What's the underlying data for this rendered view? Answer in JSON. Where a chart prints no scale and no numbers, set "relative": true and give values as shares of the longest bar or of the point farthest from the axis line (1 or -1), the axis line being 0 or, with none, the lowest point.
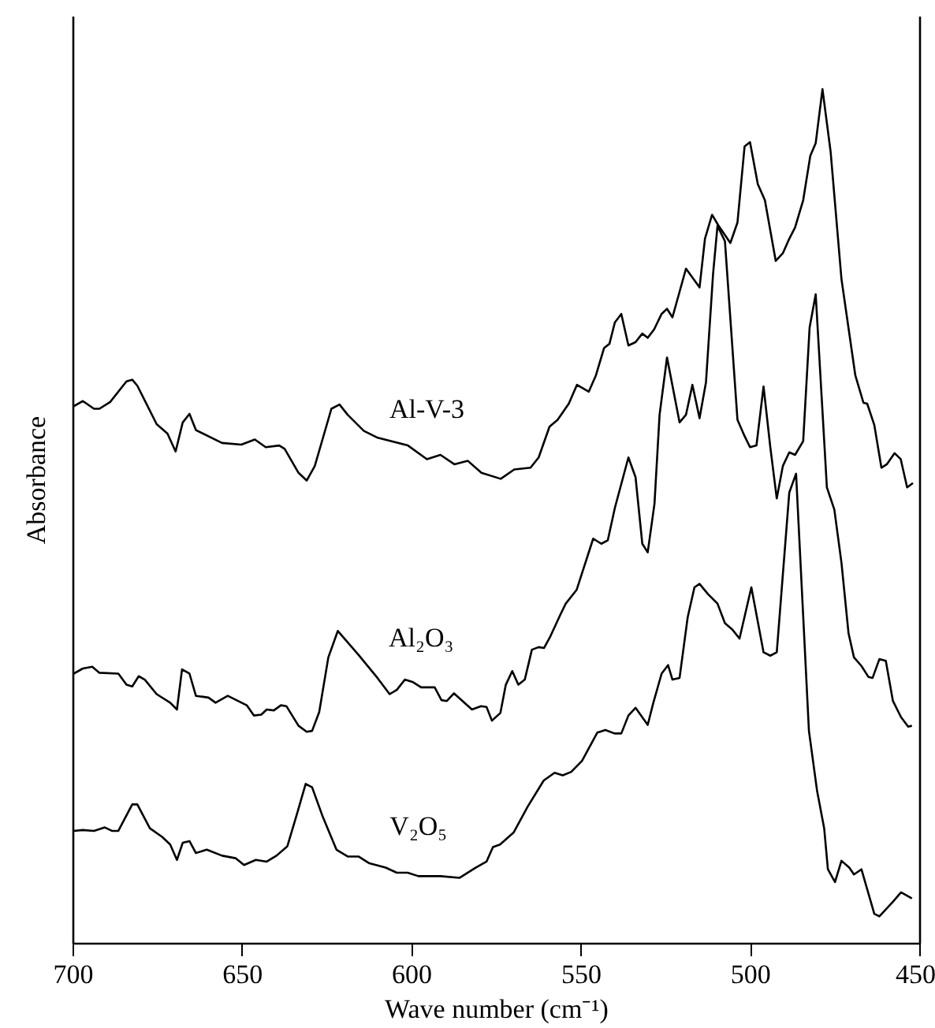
{
  "chart_data": {
    "type": "line",
    "xlabel": "Wave number (cm⁻¹)",
    "ylabel": "Absorbance",
    "relative": true,
    "tick_labels": "x",
    "xlim": [
      700,
      450
    ],
    "xticks": [
      700,
      650,
      600,
      550,
      500,
      450
    ],
    "grid": false,
    "legend": false,
    "marker": "none",
    "line_style": "solid",
    "series": [
      {
        "name": "Al-V-3",
        "color": "#000000",
        "x": [
          699.9,
          697.2,
          693.9,
          692.3,
          689.1,
          684.3,
          682.6,
          681.1,
          675.4,
          672.2,
          669.8,
          667.7,
          665.7,
          663.8,
          656.1,
          650.4,
          646.4,
          643.2,
          639.2,
          637.6,
          633.5,
          631.1,
          628.7,
          623.8,
          621.4,
          619.0,
          614.2,
          610.1,
          601.2,
          595.6,
          591.6,
          587.5,
          583.5,
          579.5,
          573.8,
          569.8,
          565.0,
          562.6,
          559.4,
          557.0,
          553.7,
          551.3,
          547.8,
          545.7,
          543.3,
          541.7,
          540.1,
          538.2,
          536.1,
          534.0,
          532.0,
          530.4,
          528.5,
          526.3,
          524.7,
          523.1,
          519.1,
          515.1,
          513.5,
          511.4,
          509.6,
          506.0,
          503.9,
          501.8,
          500.2,
          497.9,
          495.8,
          492.6,
          490.5,
          488.6,
          486.9,
          484.5,
          482.4,
          480.8,
          478.8,
          476.4,
          473.2,
          469.1,
          466.7,
          465.6,
          463.5,
          461.4,
          459.8,
          457.5,
          455.7,
          453.8,
          452.1
        ],
        "values": [
          0.629,
          0.635,
          0.626,
          0.626,
          0.634,
          0.658,
          0.66,
          0.653,
          0.608,
          0.597,
          0.576,
          0.61,
          0.62,
          0.601,
          0.586,
          0.584,
          0.59,
          0.581,
          0.583,
          0.579,
          0.551,
          0.542,
          0.559,
          0.626,
          0.631,
          0.619,
          0.6,
          0.592,
          0.583,
          0.567,
          0.572,
          0.561,
          0.565,
          0.551,
          0.544,
          0.555,
          0.557,
          0.569,
          0.605,
          0.613,
          0.632,
          0.654,
          0.646,
          0.665,
          0.697,
          0.702,
          0.727,
          0.737,
          0.7,
          0.704,
          0.714,
          0.709,
          0.719,
          0.737,
          0.743,
          0.733,
          0.79,
          0.768,
          0.825,
          0.853,
          0.841,
          0.82,
          0.844,
          0.933,
          0.938,
          0.889,
          0.87,
          0.799,
          0.808,
          0.825,
          0.838,
          0.87,
          0.922,
          0.937,
          1.0,
          0.927,
          0.778,
          0.665,
          0.633,
          0.632,
          0.607,
          0.557,
          0.561,
          0.574,
          0.567,
          0.534,
          0.539
        ]
      },
      {
        "name": "Al₂O₃",
        "color": "#000000",
        "x": [
          699.9,
          697.2,
          694.4,
          692.3,
          686.7,
          684.3,
          682.6,
          680.7,
          678.9,
          675.4,
          671.4,
          669.4,
          667.9,
          665.7,
          663.8,
          660.1,
          658.0,
          654.4,
          648.8,
          646.7,
          644.5,
          642.9,
          640.8,
          638.7,
          637.1,
          633.5,
          631.1,
          629.5,
          627.4,
          624.7,
          621.9,
          615.8,
          610.2,
          606.6,
          604.5,
          602.1,
          599.7,
          597.3,
          593.3,
          591.3,
          589.7,
          587.6,
          582.3,
          579.6,
          578.0,
          576.4,
          573.9,
          572.3,
          570.4,
          568.6,
          566.7,
          564.6,
          562.6,
          561.0,
          559.1,
          556.2,
          554.6,
          551.4,
          546.5,
          544.1,
          542.2,
          540.1,
          536.1,
          534.0,
          532.0,
          530.4,
          528.4,
          526.9,
          524.7,
          521.0,
          519.1,
          517.2,
          515.1,
          513.2,
          511.1,
          509.8,
          507.6,
          503.9,
          501.8,
          500.2,
          498.3,
          496.2,
          494.2,
          492.3,
          490.5,
          488.6,
          486.9,
          484.5,
          482.6,
          480.8,
          477.5,
          475.3,
          473.2,
          471.1,
          469.5,
          467.3,
          465.2,
          464.0,
          462.0,
          460.1,
          458.0,
          455.6,
          453.5,
          452.4
        ],
        "values": [
          0.316,
          0.322,
          0.324,
          0.317,
          0.316,
          0.303,
          0.301,
          0.313,
          0.309,
          0.292,
          0.282,
          0.274,
          0.321,
          0.316,
          0.29,
          0.288,
          0.282,
          0.29,
          0.279,
          0.267,
          0.268,
          0.274,
          0.273,
          0.279,
          0.278,
          0.255,
          0.248,
          0.249,
          0.271,
          0.335,
          0.366,
          0.338,
          0.311,
          0.292,
          0.297,
          0.309,
          0.306,
          0.3,
          0.3,
          0.285,
          0.284,
          0.293,
          0.274,
          0.278,
          0.277,
          0.261,
          0.27,
          0.303,
          0.319,
          0.303,
          0.309,
          0.344,
          0.347,
          0.346,
          0.36,
          0.385,
          0.398,
          0.414,
          0.474,
          0.468,
          0.472,
          0.51,
          0.569,
          0.546,
          0.468,
          0.458,
          0.515,
          0.619,
          0.686,
          0.61,
          0.619,
          0.654,
          0.615,
          0.657,
          0.784,
          0.84,
          0.822,
          0.613,
          0.594,
          0.581,
          0.583,
          0.652,
          0.581,
          0.521,
          0.559,
          0.575,
          0.572,
          0.588,
          0.721,
          0.76,
          0.534,
          0.508,
          0.446,
          0.363,
          0.335,
          0.325,
          0.312,
          0.311,
          0.333,
          0.331,
          0.284,
          0.265,
          0.254,
          0.255
        ]
      },
      {
        "name": "V₂O₅",
        "color": "#000000",
        "x": [
          699.9,
          697.2,
          693.9,
          690.7,
          688.6,
          686.7,
          682.6,
          681.1,
          677.4,
          673.8,
          671.4,
          669.4,
          667.7,
          665.7,
          663.8,
          660.6,
          656.1,
          652.1,
          649.6,
          646.1,
          642.9,
          640.0,
          636.8,
          633.8,
          631.4,
          629.5,
          626.3,
          622.3,
          619.0,
          615.8,
          612.6,
          607.8,
          604.5,
          601.3,
          598.1,
          591.6,
          586.0,
          583.6,
          581.2,
          578.0,
          576.1,
          574.0,
          570.0,
          565.9,
          561.1,
          557.9,
          555.5,
          553.0,
          549.8,
          545.3,
          542.9,
          540.2,
          538.2,
          536.1,
          534.0,
          530.4,
          528.8,
          526.3,
          524.4,
          523.1,
          521.0,
          518.6,
          516.6,
          515.1,
          512.6,
          509.8,
          507.6,
          505.5,
          503.3,
          499.8,
          496.2,
          494.2,
          492.3,
          488.6,
          486.6,
          482.8,
          480.4,
          478.3,
          477.2,
          475.1,
          473.2,
          470.9,
          469.5,
          467.3,
          463.5,
          462.0,
          458.0,
          455.6,
          452.4
        ],
        "values": [
          0.132,
          0.133,
          0.132,
          0.136,
          0.132,
          0.132,
          0.163,
          0.163,
          0.135,
          0.125,
          0.116,
          0.098,
          0.118,
          0.12,
          0.106,
          0.11,
          0.103,
          0.1,
          0.092,
          0.098,
          0.096,
          0.103,
          0.114,
          0.154,
          0.187,
          0.183,
          0.148,
          0.11,
          0.102,
          0.102,
          0.094,
          0.089,
          0.083,
          0.083,
          0.079,
          0.079,
          0.077,
          0.083,
          0.089,
          0.096,
          0.113,
          0.116,
          0.13,
          0.16,
          0.191,
          0.2,
          0.197,
          0.201,
          0.214,
          0.247,
          0.25,
          0.246,
          0.246,
          0.267,
          0.276,
          0.256,
          0.281,
          0.316,
          0.326,
          0.309,
          0.311,
          0.382,
          0.417,
          0.421,
          0.409,
          0.398,
          0.375,
          0.368,
          0.357,
          0.417,
          0.341,
          0.337,
          0.341,
          0.528,
          0.55,
          0.249,
          0.179,
          0.135,
          0.087,
          0.072,
          0.097,
          0.089,
          0.081,
          0.087,
          0.035,
          0.032,
          0.049,
          0.06,
          0.053
        ]
      }
    ]
  }
}
